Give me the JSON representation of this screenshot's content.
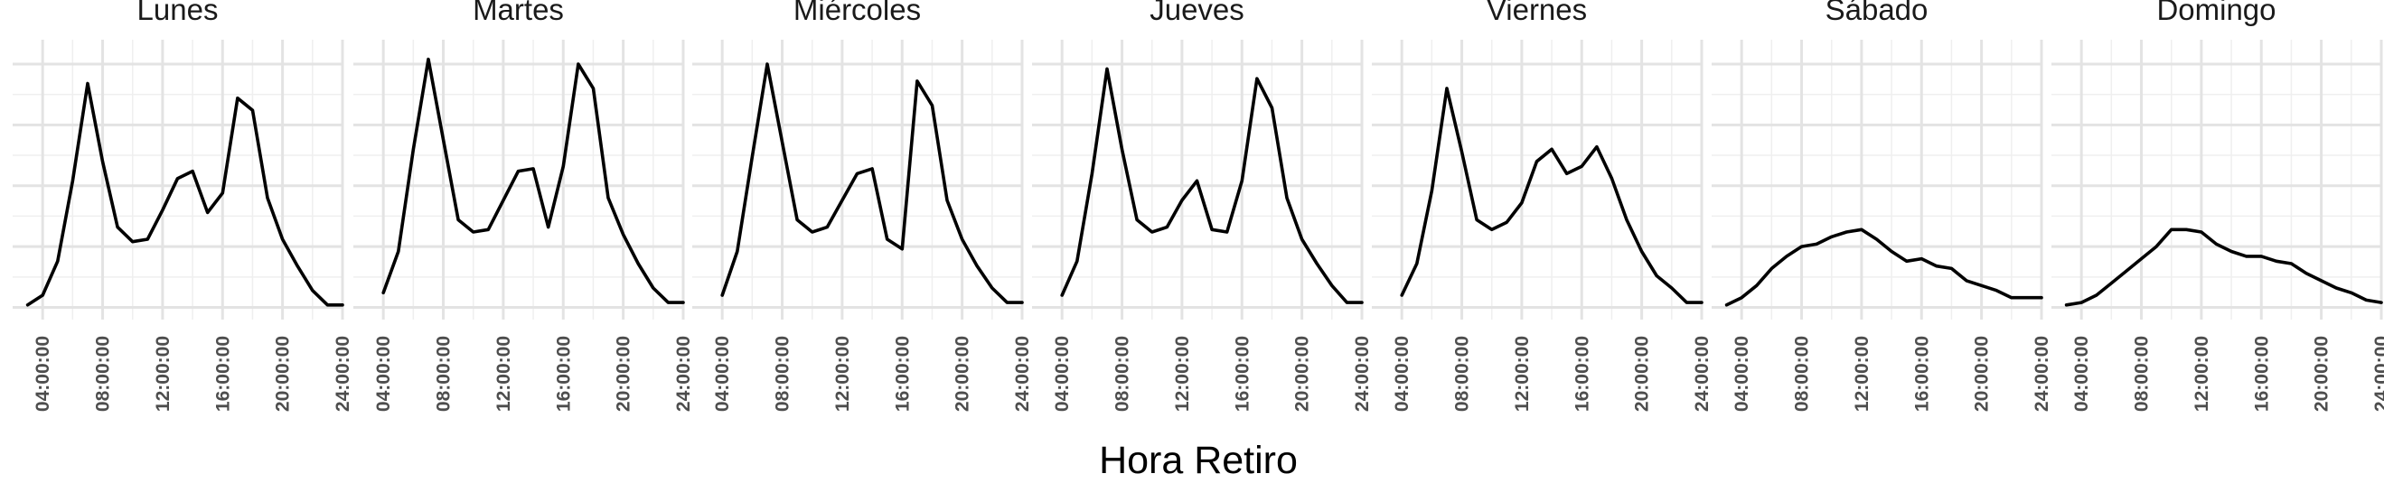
{
  "chart_data": {
    "type": "line",
    "xlabel": "Hora Retiro",
    "ylabel": "",
    "x_domain": [
      "02:00:00",
      "24:00:00"
    ],
    "y_domain": [
      -0.05,
      1.1
    ],
    "y_tick_labels_shown": false,
    "grid": true,
    "legend": "none",
    "line_color": "#000000",
    "x_ticks": [
      "04:00:00",
      "08:00:00",
      "12:00:00",
      "16:00:00",
      "20:00:00",
      "24:00:00"
    ],
    "panels": [
      {
        "title": "Lunes",
        "x": [
          "03:00:00",
          "04:00:00",
          "05:00:00",
          "06:00:00",
          "07:00:00",
          "08:00:00",
          "09:00:00",
          "10:00:00",
          "11:00:00",
          "12:00:00",
          "13:00:00",
          "14:00:00",
          "15:00:00",
          "16:00:00",
          "17:00:00",
          "18:00:00",
          "19:00:00",
          "20:00:00",
          "21:00:00",
          "22:00:00",
          "23:00:00",
          "24:00:00"
        ],
        "values": [
          0.01,
          0.05,
          0.19,
          0.52,
          0.92,
          0.6,
          0.33,
          0.27,
          0.28,
          0.4,
          0.53,
          0.56,
          0.39,
          0.47,
          0.86,
          0.81,
          0.45,
          0.28,
          0.17,
          0.07,
          0.01,
          0.01
        ]
      },
      {
        "title": "Martes",
        "x": [
          "04:00:00",
          "05:00:00",
          "06:00:00",
          "07:00:00",
          "08:00:00",
          "09:00:00",
          "10:00:00",
          "11:00:00",
          "12:00:00",
          "13:00:00",
          "14:00:00",
          "15:00:00",
          "16:00:00",
          "17:00:00",
          "18:00:00",
          "19:00:00",
          "20:00:00",
          "21:00:00",
          "22:00:00",
          "23:00:00",
          "24:00:00"
        ],
        "values": [
          0.06,
          0.23,
          0.65,
          1.02,
          0.69,
          0.36,
          0.31,
          0.32,
          0.44,
          0.56,
          0.57,
          0.33,
          0.58,
          1.0,
          0.9,
          0.45,
          0.3,
          0.18,
          0.08,
          0.02,
          0.02
        ]
      },
      {
        "title": "Miércoles",
        "x": [
          "04:00:00",
          "05:00:00",
          "06:00:00",
          "07:00:00",
          "08:00:00",
          "09:00:00",
          "10:00:00",
          "11:00:00",
          "12:00:00",
          "13:00:00",
          "14:00:00",
          "15:00:00",
          "16:00:00",
          "17:00:00",
          "18:00:00",
          "19:00:00",
          "20:00:00",
          "21:00:00",
          "22:00:00",
          "23:00:00",
          "24:00:00"
        ],
        "values": [
          0.05,
          0.23,
          0.62,
          1.0,
          0.68,
          0.36,
          0.31,
          0.33,
          0.44,
          0.55,
          0.57,
          0.28,
          0.24,
          0.93,
          0.83,
          0.44,
          0.28,
          0.17,
          0.08,
          0.02,
          0.02
        ]
      },
      {
        "title": "Jueves",
        "x": [
          "04:00:00",
          "05:00:00",
          "06:00:00",
          "07:00:00",
          "08:00:00",
          "09:00:00",
          "10:00:00",
          "11:00:00",
          "12:00:00",
          "13:00:00",
          "14:00:00",
          "15:00:00",
          "16:00:00",
          "17:00:00",
          "18:00:00",
          "19:00:00",
          "20:00:00",
          "21:00:00",
          "22:00:00",
          "23:00:00",
          "24:00:00"
        ],
        "values": [
          0.05,
          0.19,
          0.55,
          0.98,
          0.65,
          0.36,
          0.31,
          0.33,
          0.44,
          0.52,
          0.32,
          0.31,
          0.52,
          0.94,
          0.82,
          0.45,
          0.28,
          0.18,
          0.09,
          0.02,
          0.02
        ]
      },
      {
        "title": "Viernes",
        "x": [
          "04:00:00",
          "05:00:00",
          "06:00:00",
          "07:00:00",
          "08:00:00",
          "09:00:00",
          "10:00:00",
          "11:00:00",
          "12:00:00",
          "13:00:00",
          "14:00:00",
          "15:00:00",
          "16:00:00",
          "17:00:00",
          "18:00:00",
          "19:00:00",
          "20:00:00",
          "21:00:00",
          "22:00:00",
          "23:00:00",
          "24:00:00"
        ],
        "values": [
          0.05,
          0.18,
          0.48,
          0.9,
          0.64,
          0.36,
          0.32,
          0.35,
          0.43,
          0.6,
          0.65,
          0.55,
          0.58,
          0.66,
          0.53,
          0.36,
          0.23,
          0.13,
          0.08,
          0.02,
          0.02
        ]
      },
      {
        "title": "Sábado",
        "x": [
          "03:00:00",
          "04:00:00",
          "05:00:00",
          "06:00:00",
          "07:00:00",
          "08:00:00",
          "09:00:00",
          "10:00:00",
          "11:00:00",
          "12:00:00",
          "13:00:00",
          "14:00:00",
          "15:00:00",
          "16:00:00",
          "17:00:00",
          "18:00:00",
          "19:00:00",
          "20:00:00",
          "21:00:00",
          "22:00:00",
          "23:00:00",
          "24:00:00"
        ],
        "values": [
          0.01,
          0.04,
          0.09,
          0.16,
          0.21,
          0.25,
          0.26,
          0.29,
          0.31,
          0.32,
          0.28,
          0.23,
          0.19,
          0.2,
          0.17,
          0.16,
          0.11,
          0.09,
          0.07,
          0.04,
          0.04,
          0.04
        ]
      },
      {
        "title": "Domingo",
        "x": [
          "03:00:00",
          "04:00:00",
          "05:00:00",
          "06:00:00",
          "07:00:00",
          "08:00:00",
          "09:00:00",
          "10:00:00",
          "11:00:00",
          "12:00:00",
          "13:00:00",
          "14:00:00",
          "15:00:00",
          "16:00:00",
          "17:00:00",
          "18:00:00",
          "19:00:00",
          "20:00:00",
          "21:00:00",
          "22:00:00",
          "23:00:00",
          "24:00:00"
        ],
        "values": [
          0.01,
          0.02,
          0.05,
          0.1,
          0.15,
          0.2,
          0.25,
          0.32,
          0.32,
          0.31,
          0.26,
          0.23,
          0.21,
          0.21,
          0.19,
          0.18,
          0.14,
          0.11,
          0.08,
          0.06,
          0.03,
          0.02
        ]
      }
    ]
  }
}
